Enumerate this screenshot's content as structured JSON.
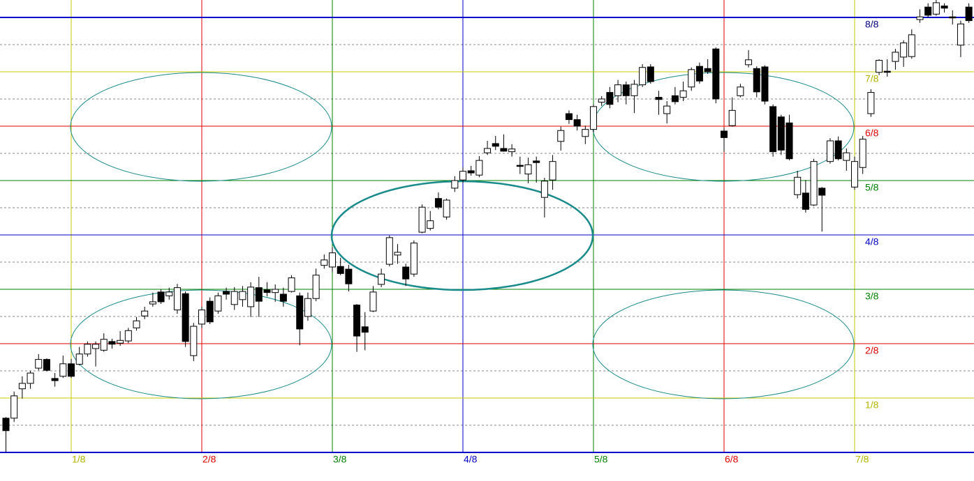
{
  "chart_data": {
    "type": "candlestick",
    "xlim": [
      7.273,
      126.63
    ],
    "ylim": [
      0,
      8.32
    ],
    "xticks": [
      {
        "value": 16,
        "label": "1/8"
      },
      {
        "value": 32,
        "label": "2/8"
      },
      {
        "value": 48,
        "label": "3/8"
      },
      {
        "value": 64,
        "label": "4/8"
      },
      {
        "value": 80,
        "label": "5/8"
      },
      {
        "value": 96,
        "label": "6/8"
      },
      {
        "value": 112,
        "label": "7/8"
      }
    ],
    "xtick_colors": [
      "#c8c800",
      "#e00000",
      "#008000",
      "#0000c8",
      "#008000",
      "#e00000",
      "#c8c800"
    ],
    "yticks": [
      {
        "value": 1,
        "label": "1/8"
      },
      {
        "value": 2,
        "label": "2/8"
      },
      {
        "value": 3,
        "label": "3/8"
      },
      {
        "value": 4,
        "label": "4/8"
      },
      {
        "value": 5,
        "label": "5/8"
      },
      {
        "value": 6,
        "label": "6/8"
      },
      {
        "value": 7,
        "label": "7/8"
      },
      {
        "value": 8,
        "label": "8/8"
      }
    ],
    "ytick_colors": [
      "#c8c800",
      "#e00000",
      "#008000",
      "#0000c8",
      "#008000",
      "#e00000",
      "#c8c800",
      "#0000c8"
    ],
    "y_minor_ticks": [
      0.5,
      1.5,
      2.5,
      3.5,
      4.5,
      5.5,
      6.5,
      7.5
    ],
    "up_color": "#ffffff",
    "down_color": "#000000",
    "x": [
      8,
      9,
      10,
      11,
      12,
      13,
      14,
      15,
      16,
      17,
      18,
      19,
      20,
      21,
      22,
      23,
      24,
      25,
      26,
      27,
      28,
      29,
      30,
      31,
      32,
      33,
      34,
      35,
      36,
      37,
      38,
      39,
      40,
      41,
      42,
      43,
      44,
      45,
      46,
      47,
      48,
      49,
      50,
      51,
      52,
      53,
      54,
      55,
      56,
      57,
      58,
      59,
      60,
      61,
      62,
      63,
      64,
      65,
      66,
      67,
      68,
      69,
      70,
      71,
      72,
      73,
      74,
      75,
      76,
      77,
      78,
      79,
      80,
      81,
      82,
      83,
      84,
      85,
      86,
      87,
      88,
      89,
      90,
      91,
      92,
      93,
      94,
      95,
      96,
      97,
      98,
      99,
      100,
      101,
      102,
      103,
      104,
      105,
      106,
      107,
      108,
      109,
      110,
      111,
      112,
      113,
      114,
      115,
      116,
      117,
      118,
      119,
      120,
      121,
      122,
      123,
      124,
      125,
      126
    ],
    "open": [
      0.63,
      0.63,
      1.17,
      1.27,
      1.55,
      1.71,
      1.36,
      1.4,
      1.63,
      1.62,
      1.81,
      1.91,
      1.88,
      2.04,
      2.01,
      2.05,
      2.29,
      2.51,
      2.73,
      2.95,
      2.88,
      2.62,
      2.92,
      1.78,
      2.36,
      2.78,
      2.6,
      2.96,
      2.72,
      2.81,
      2.68,
      3.03,
      2.99,
      2.94,
      2.91,
      2.96,
      2.88,
      2.5,
      2.83,
      3.44,
      3.41,
      3.42,
      3.37,
      2.71,
      2.31,
      2.6,
      3.09,
      3.46,
      3.63,
      3.41,
      3.28,
      4.05,
      4.12,
      4.67,
      4.33,
      4.86,
      5.01,
      5.18,
      5.1,
      5.51,
      5.68,
      5.59,
      5.53,
      5.28,
      5.12,
      5.36,
      4.69,
      5.01,
      5.72,
      6.23,
      6.12,
      5.81,
      5.94,
      6.44,
      6.62,
      6.56,
      6.76,
      6.56,
      6.76,
      7.09,
      6.53,
      6.23,
      6.56,
      6.53,
      6.72,
      7.1,
      7.06,
      7.42,
      5.91,
      6.01,
      6.56,
      7.13,
      7.06,
      7.09,
      6.36,
      6.17,
      6.06,
      4.74,
      4.77,
      4.55,
      4.86,
      5.35,
      5.73,
      5.37,
      4.88,
      5.24,
      6.23,
      6.99,
      7.01,
      7.19,
      7.27,
      7.28,
      7.96,
      8.19,
      8.06,
      8.21,
      8.01,
      7.49,
      8.19
    ],
    "high": [
      0.65,
      1.12,
      1.4,
      1.5,
      1.81,
      1.73,
      1.46,
      1.78,
      1.72,
      1.94,
      2.04,
      2.04,
      2.19,
      2.09,
      2.23,
      2.29,
      2.49,
      2.68,
      2.94,
      3.0,
      3.03,
      3.1,
      2.96,
      2.38,
      2.68,
      2.85,
      2.94,
      3.03,
      3.04,
      3.06,
      3.13,
      3.23,
      3.13,
      3.09,
      3.03,
      3.26,
      2.94,
      2.94,
      3.38,
      3.64,
      3.77,
      3.58,
      3.45,
      2.73,
      2.58,
      3.06,
      3.38,
      3.99,
      3.83,
      3.47,
      3.9,
      4.56,
      4.44,
      4.78,
      4.67,
      5.08,
      5.24,
      5.27,
      5.45,
      5.73,
      5.82,
      5.85,
      5.67,
      5.44,
      5.42,
      5.44,
      5.05,
      5.47,
      5.99,
      6.29,
      6.21,
      6.01,
      6.4,
      6.55,
      6.72,
      6.85,
      6.82,
      6.85,
      7.14,
      7.14,
      6.65,
      6.46,
      6.72,
      6.82,
      7.08,
      7.17,
      7.23,
      7.45,
      5.97,
      6.53,
      6.78,
      7.4,
      7.1,
      7.12,
      6.4,
      6.21,
      6.21,
      5.18,
      5.01,
      5.4,
      4.88,
      5.78,
      5.81,
      5.59,
      5.44,
      5.82,
      6.68,
      7.23,
      7.23,
      7.42,
      7.58,
      7.78,
      8.15,
      8.26,
      8.32,
      8.26,
      8.13,
      7.94,
      8.26
    ],
    "low": [
      0.01,
      0.56,
      0.99,
      1.17,
      1.51,
      1.49,
      1.21,
      1.37,
      1.37,
      1.6,
      1.76,
      1.58,
      1.85,
      1.91,
      1.96,
      2.01,
      2.24,
      2.45,
      2.68,
      2.73,
      2.81,
      2.55,
      1.94,
      1.68,
      2.29,
      2.36,
      2.55,
      2.81,
      2.62,
      2.68,
      2.49,
      2.49,
      2.87,
      2.77,
      2.68,
      2.94,
      1.97,
      2.42,
      2.78,
      3.38,
      3.32,
      3.26,
      2.96,
      1.85,
      1.88,
      2.58,
      3.04,
      3.42,
      3.47,
      3.06,
      3.23,
      4.03,
      4.08,
      4.47,
      4.28,
      4.79,
      4.96,
      5.09,
      5.06,
      5.47,
      5.56,
      5.53,
      5.44,
      5.12,
      4.95,
      4.96,
      4.32,
      4.83,
      5.55,
      6.04,
      5.92,
      5.67,
      5.88,
      6.37,
      6.33,
      6.44,
      6.4,
      6.24,
      6.72,
      6.78,
      6.21,
      6.05,
      6.4,
      6.46,
      6.65,
      6.78,
      6.96,
      6.42,
      5.53,
      5.99,
      6.53,
      7.08,
      6.53,
      6.4,
      5.44,
      5.47,
      5.37,
      4.67,
      4.41,
      4.53,
      4.06,
      5.31,
      5.37,
      5.18,
      4.83,
      5.12,
      6.17,
      6.94,
      6.91,
      7.04,
      7.09,
      7.24,
      7.9,
      8.0,
      8.03,
      8.09,
      7.87,
      7.27,
      7.9
    ],
    "close": [
      0.4,
      1.04,
      1.27,
      1.46,
      1.71,
      1.51,
      1.32,
      1.63,
      1.4,
      1.81,
      1.99,
      1.99,
      2.08,
      1.99,
      2.06,
      2.24,
      2.42,
      2.6,
      2.77,
      2.77,
      2.95,
      3.03,
      2.04,
      2.32,
      2.62,
      2.4,
      2.88,
      2.91,
      2.96,
      2.96,
      3.04,
      2.78,
      2.94,
      3.0,
      2.78,
      3.21,
      2.27,
      2.83,
      3.26,
      3.54,
      3.67,
      3.29,
      3.1,
      2.14,
      2.21,
      2.95,
      3.28,
      3.95,
      3.68,
      3.19,
      3.85,
      4.51,
      4.26,
      4.51,
      4.64,
      5.0,
      5.17,
      5.14,
      5.37,
      5.59,
      5.63,
      5.54,
      5.58,
      5.26,
      5.29,
      5.33,
      4.99,
      5.35,
      5.92,
      6.12,
      6.0,
      5.94,
      6.36,
      6.5,
      6.4,
      6.76,
      6.56,
      6.77,
      7.08,
      6.82,
      6.49,
      6.37,
      6.45,
      6.65,
      7.04,
      6.83,
      7.0,
      6.5,
      5.79,
      6.29,
      6.72,
      7.22,
      6.63,
      6.46,
      5.53,
      5.56,
      5.4,
      5.06,
      4.47,
      5.35,
      4.73,
      5.73,
      5.4,
      5.51,
      5.35,
      5.76,
      6.62,
      7.21,
      6.99,
      7.36,
      7.53,
      7.68,
      8.01,
      8.04,
      8.27,
      8.17,
      7.99,
      7.88,
      7.94
    ]
  }
}
